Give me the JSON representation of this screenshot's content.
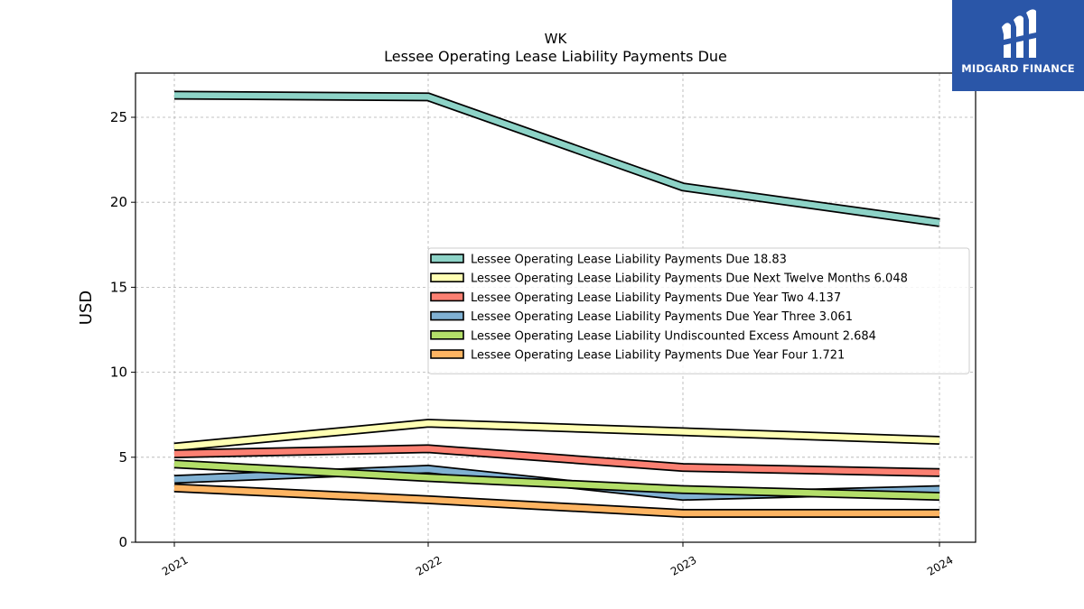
{
  "chart_data": {
    "type": "line",
    "title": "WK",
    "subtitle": "Lessee Operating Lease Liability Payments Due",
    "xlabel": "",
    "ylabel": "USD",
    "categories": [
      "2021",
      "2022",
      "2023",
      "2024"
    ],
    "ylim": [
      0,
      27.6
    ],
    "yticks": [
      0,
      5,
      10,
      15,
      20,
      25
    ],
    "grid": true,
    "legend_position": "center-right",
    "series": [
      {
        "name": "Lessee Operating Lease Liability Payments Due",
        "legend_label": "Lessee Operating Lease Liability Payments Due  18.83",
        "color": "#8dd3c7",
        "values": [
          26.3,
          26.2,
          20.9,
          18.8
        ]
      },
      {
        "name": "Lessee Operating Lease Liability Payments Due Next Twelve Months",
        "legend_label": "Lessee Operating Lease Liability Payments Due Next Twelve Months  6.048",
        "color": "#ffffb3",
        "values": [
          5.6,
          7.0,
          6.5,
          6.0
        ]
      },
      {
        "name": "Lessee Operating Lease Liability Payments Due Year Two",
        "legend_label": "Lessee Operating Lease Liability Payments Due Year Two  4.137",
        "color": "#fb8072",
        "values": [
          5.2,
          5.5,
          4.4,
          4.1
        ]
      },
      {
        "name": "Lessee Operating Lease Liability Payments Due Year Three",
        "legend_label": "Lessee Operating Lease Liability Payments Due Year Three  3.061",
        "color": "#80b1d3",
        "values": [
          3.7,
          4.3,
          2.7,
          3.1
        ]
      },
      {
        "name": "Lessee Operating Lease Liability Undiscounted Excess Amount",
        "legend_label": "Lessee Operating Lease Liability Undiscounted Excess Amount  2.684",
        "color": "#b3de69",
        "values": [
          4.6,
          3.8,
          3.1,
          2.7
        ]
      },
      {
        "name": "Lessee Operating Lease Liability Payments Due Year Four",
        "legend_label": "Lessee Operating Lease Liability Payments Due Year Four  1.721",
        "color": "#fdb462",
        "values": [
          3.2,
          2.5,
          1.7,
          1.7
        ]
      }
    ]
  },
  "logo": {
    "text": "MIDGARD FINANCE",
    "color": "#2a56a8"
  }
}
